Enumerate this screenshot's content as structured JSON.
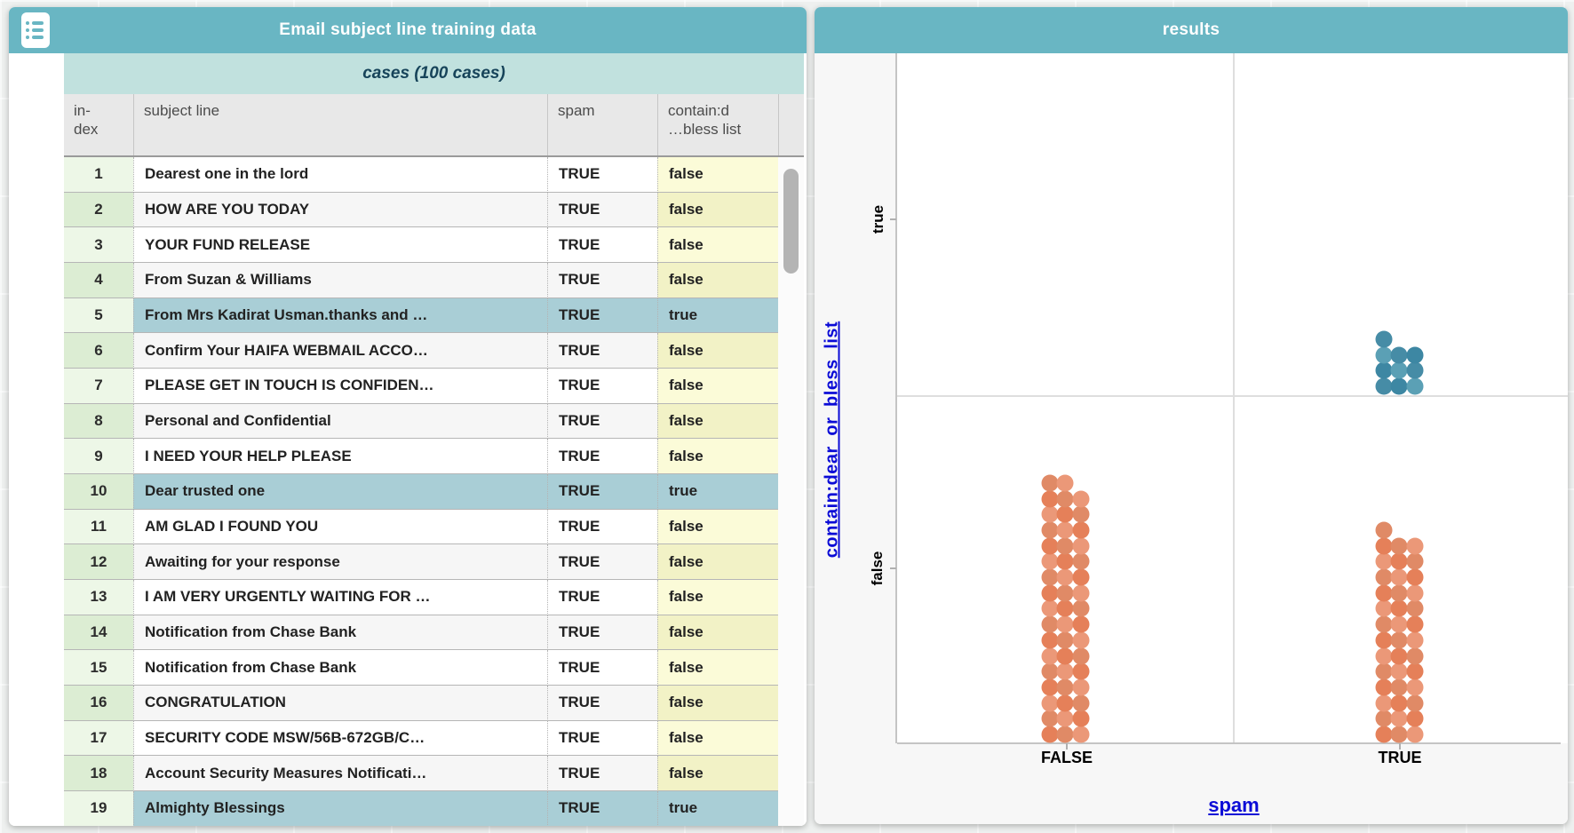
{
  "colors": {
    "titlebar_teal": "#69b6c3",
    "cases_band_teal": "#c1e1de",
    "selected_row_teal": "#a9ced6",
    "index_col_green": "#edf7e7",
    "contain_col_yellow": "#fbfbd8",
    "link_blue": "#0b0bd6",
    "orange_dot": "#e5835c",
    "blue_dot": "#4a90a9"
  },
  "table_panel": {
    "title": "Email subject line training data",
    "cases_header": "cases (100 cases)",
    "columns": [
      {
        "id": "index",
        "label": "in-\ndex"
      },
      {
        "id": "subject",
        "label": "subject line"
      },
      {
        "id": "spam",
        "label": "spam"
      },
      {
        "id": "contain",
        "label": "contain:d\n…bless list"
      }
    ],
    "rows": [
      {
        "index": 1,
        "subject": "Dearest one in the lord",
        "spam": "TRUE",
        "contain": "false",
        "selected": false
      },
      {
        "index": 2,
        "subject": "HOW ARE YOU TODAY",
        "spam": "TRUE",
        "contain": "false",
        "selected": false
      },
      {
        "index": 3,
        "subject": "YOUR FUND RELEASE",
        "spam": "TRUE",
        "contain": "false",
        "selected": false
      },
      {
        "index": 4,
        "subject": "From Suzan & Williams",
        "spam": "TRUE",
        "contain": "false",
        "selected": false
      },
      {
        "index": 5,
        "subject": "From Mrs Kadirat Usman.thanks and …",
        "spam": "TRUE",
        "contain": "true",
        "selected": true
      },
      {
        "index": 6,
        "subject": "Confirm Your HAIFA WEBMAIL ACCO…",
        "spam": "TRUE",
        "contain": "false",
        "selected": false
      },
      {
        "index": 7,
        "subject": "PLEASE GET IN TOUCH IS CONFIDEN…",
        "spam": "TRUE",
        "contain": "false",
        "selected": false
      },
      {
        "index": 8,
        "subject": "Personal and Confidential",
        "spam": "TRUE",
        "contain": "false",
        "selected": false
      },
      {
        "index": 9,
        "subject": "I NEED YOUR HELP PLEASE",
        "spam": "TRUE",
        "contain": "false",
        "selected": false
      },
      {
        "index": 10,
        "subject": "Dear trusted one",
        "spam": "TRUE",
        "contain": "true",
        "selected": true
      },
      {
        "index": 11,
        "subject": "AM GLAD I FOUND YOU",
        "spam": "TRUE",
        "contain": "false",
        "selected": false
      },
      {
        "index": 12,
        "subject": "Awaiting for your response",
        "spam": "TRUE",
        "contain": "false",
        "selected": false
      },
      {
        "index": 13,
        "subject": "I AM VERY URGENTLY WAITING FOR …",
        "spam": "TRUE",
        "contain": "false",
        "selected": false
      },
      {
        "index": 14,
        "subject": "Notification from Chase Bank",
        "spam": "TRUE",
        "contain": "false",
        "selected": false
      },
      {
        "index": 15,
        "subject": "Notification from Chase Bank",
        "spam": "TRUE",
        "contain": "false",
        "selected": false
      },
      {
        "index": 16,
        "subject": "CONGRATULATION",
        "spam": "TRUE",
        "contain": "false",
        "selected": false
      },
      {
        "index": 17,
        "subject": "SECURITY CODE MSW/56B-672GB/C…",
        "spam": "TRUE",
        "contain": "false",
        "selected": false
      },
      {
        "index": 18,
        "subject": "Account Security Measures Notificati…",
        "spam": "TRUE",
        "contain": "false",
        "selected": false
      },
      {
        "index": 19,
        "subject": "Almighty Blessings",
        "spam": "TRUE",
        "contain": "true",
        "selected": true
      }
    ]
  },
  "graph_panel": {
    "title": "results",
    "y_axis": {
      "label": "contain:dear_or_bless_list",
      "tick_labels": [
        "true",
        "false"
      ]
    },
    "x_axis": {
      "label": "spam",
      "tick_labels": [
        "FALSE",
        "TRUE"
      ]
    }
  },
  "chart_data": {
    "type": "scatter",
    "subtype": "categorical-dot-chart",
    "title": "results",
    "xlabel": "spam",
    "ylabel": "contain:dear_or_bless_list",
    "x_categories": [
      "FALSE",
      "TRUE"
    ],
    "y_categories": [
      "false",
      "true"
    ],
    "cells": [
      {
        "x": "FALSE",
        "y": "false",
        "count": 50,
        "columns": [
          17,
          17,
          16
        ],
        "palette": "orange",
        "selected": false
      },
      {
        "x": "TRUE",
        "y": "false",
        "count": 40,
        "columns": [
          14,
          13,
          13
        ],
        "palette": "orange",
        "selected": false
      },
      {
        "x": "TRUE",
        "y": "true",
        "count": 10,
        "columns": [
          4,
          3,
          3
        ],
        "palette": "blue",
        "selected": true
      },
      {
        "x": "FALSE",
        "y": "true",
        "count": 0,
        "columns": [],
        "palette": "orange",
        "selected": false
      }
    ],
    "palettes": {
      "orange": [
        "#e58059",
        "#eb9878",
        "#e08a66"
      ],
      "blue": [
        "#468ca6",
        "#5ba0b5",
        "#3d87a3"
      ]
    },
    "legend_position": "none",
    "grid": "quadrant-dividers"
  }
}
